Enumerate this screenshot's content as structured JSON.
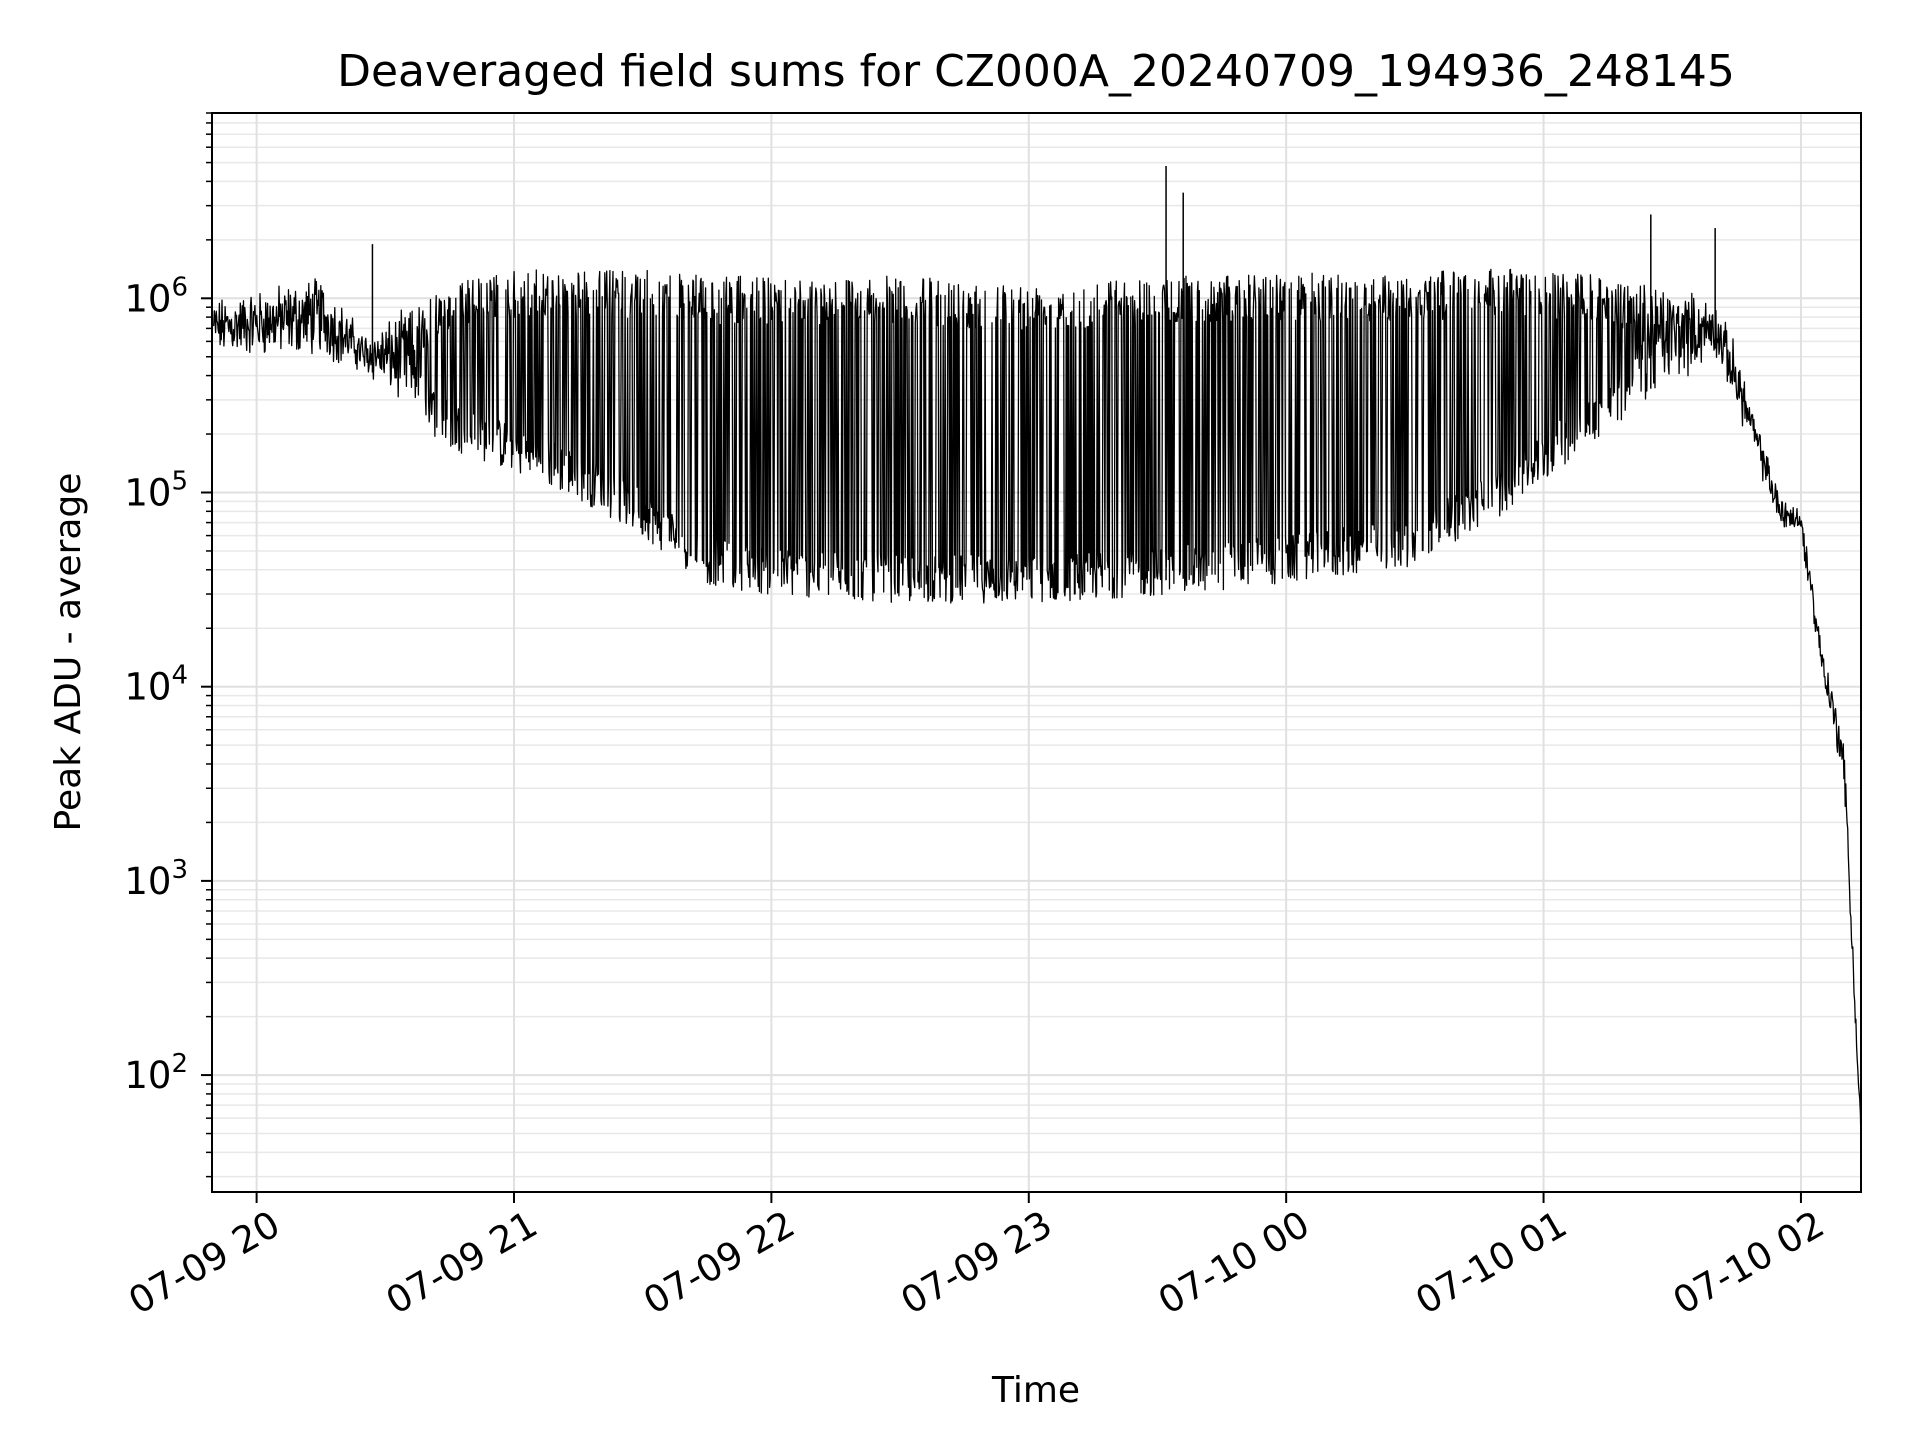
{
  "chart_data": {
    "type": "line",
    "title": "Deaveraged field sums for CZ000A_20240709_194936_248145",
    "xlabel": "Time",
    "ylabel": "Peak ADU - average",
    "yscale": "log",
    "xlim": [
      "2024-07-09 19:49:36",
      "2024-07-10 02:14:00"
    ],
    "ylim": [
      25,
      9000000
    ],
    "grid": true,
    "line_color": "#000000",
    "x_ticks": [
      {
        "label": "07-09 20",
        "value": "2024-07-09 20:00"
      },
      {
        "label": "07-09 21",
        "value": "2024-07-09 21:00"
      },
      {
        "label": "07-09 22",
        "value": "2024-07-09 22:00"
      },
      {
        "label": "07-09 23",
        "value": "2024-07-09 23:00"
      },
      {
        "label": "07-10 00",
        "value": "2024-07-10 00:00"
      },
      {
        "label": "07-10 01",
        "value": "2024-07-10 01:00"
      },
      {
        "label": "07-10 02",
        "value": "2024-07-10 02:00"
      }
    ],
    "y_ticks": [
      {
        "base": "10",
        "exp": "2",
        "value": 100
      },
      {
        "base": "10",
        "exp": "3",
        "value": 1000
      },
      {
        "base": "10",
        "exp": "4",
        "value": 10000
      },
      {
        "base": "10",
        "exp": "5",
        "value": 100000
      },
      {
        "base": "10",
        "exp": "6",
        "value": 1000000
      }
    ],
    "envelope": {
      "x": [
        "2024-07-09 19:50",
        "2024-07-09 20:15",
        "2024-07-09 20:25",
        "2024-07-09 20:35",
        "2024-07-09 20:45",
        "2024-07-09 21:00",
        "2024-07-09 21:15",
        "2024-07-09 21:30",
        "2024-07-09 21:45",
        "2024-07-09 22:00",
        "2024-07-09 22:30",
        "2024-07-09 23:00",
        "2024-07-09 23:30",
        "2024-07-10 00:00",
        "2024-07-10 00:30",
        "2024-07-10 00:50",
        "2024-07-10 01:15",
        "2024-07-10 01:40",
        "2024-07-10 01:45",
        "2024-07-10 01:50",
        "2024-07-10 01:55",
        "2024-07-10 02:00",
        "2024-07-10 02:05",
        "2024-07-10 02:10",
        "2024-07-10 02:14"
      ],
      "baseline": [
        550000,
        550000,
        450000,
        300000,
        200000,
        150000,
        110000,
        70000,
        40000,
        35000,
        32000,
        32000,
        35000,
        40000,
        50000,
        90000,
        250000,
        550000,
        300000,
        150000,
        75000,
        65000,
        12000,
        3500,
        45
      ],
      "peak": [
        900000,
        1200000,
        600000,
        800000,
        1200000,
        1400000,
        1400000,
        1400000,
        1300000,
        1300000,
        1300000,
        1200000,
        1300000,
        1350000,
        1350000,
        1450000,
        1300000,
        900000,
        500000,
        200000,
        90000,
        75000,
        15000,
        5000,
        50
      ]
    },
    "spikes": [
      {
        "x": "2024-07-09 20:27",
        "y": 1900000
      },
      {
        "x": "2024-07-09 23:32",
        "y": 4800000
      },
      {
        "x": "2024-07-09 23:36",
        "y": 3500000
      },
      {
        "x": "2024-07-10 01:25",
        "y": 2700000
      },
      {
        "x": "2024-07-10 01:40",
        "y": 2300000
      }
    ]
  }
}
